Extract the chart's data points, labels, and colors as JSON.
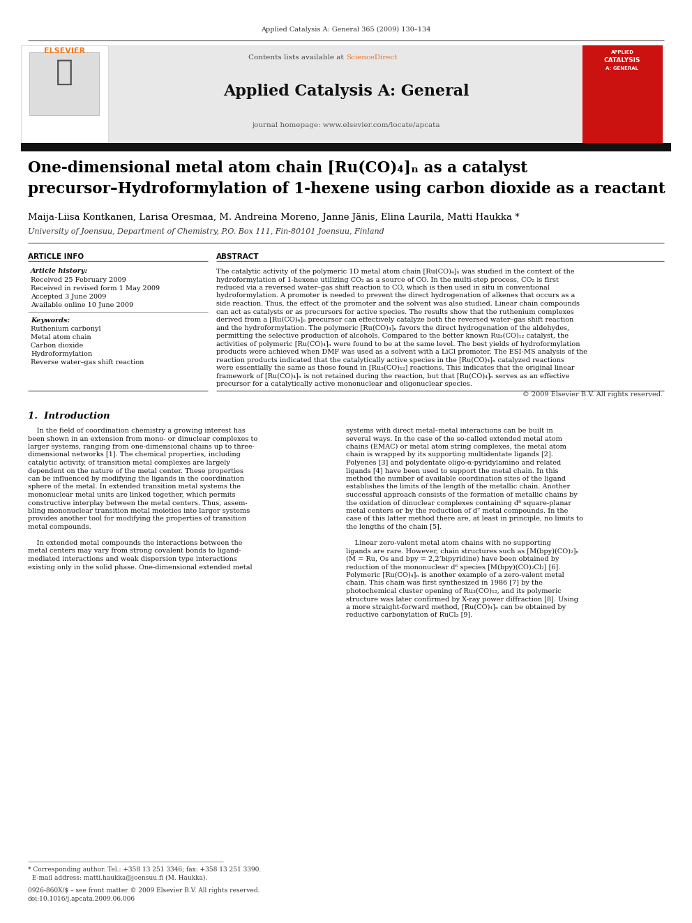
{
  "page_width": 9.92,
  "page_height": 13.23,
  "dpi": 100,
  "bg_color": "#ffffff",
  "header_journal": "Applied Catalysis A: General 365 (2009) 130–134",
  "science_direct_color": "#e87020",
  "journal_name": "Applied Catalysis A: General",
  "journal_homepage": "journal homepage: www.elsevier.com/locate/apcata",
  "contents_text": "Contents lists available at ",
  "science_direct_text": "ScienceDirect",
  "article_title_line1": "One-dimensional metal atom chain [Ru(CO)₄]ₙ as a catalyst",
  "article_title_line2": "precursor–Hydroformylation of 1-hexene using carbon dioxide as a reactant",
  "authors": "Maija-Liisa Kontkanen, Larisa Oresmaa, M. Andreina Moreno, Janne Jänis, Elina Laurila, Matti Haukka *",
  "affiliation": "University of Joensuu, Department of Chemistry, P.O. Box 111, Fin-80101 Joensuu, Finland",
  "article_info_title": "ARTICLE INFO",
  "abstract_title": "ABSTRACT",
  "article_history_label": "Article history:",
  "received1": "Received 25 February 2009",
  "received2": "Received in revised form 1 May 2009",
  "accepted": "Accepted 3 June 2009",
  "available": "Available online 10 June 2009",
  "keywords_label": "Keywords:",
  "keyword1": "Ruthenium carbonyl",
  "keyword2": "Metal atom chain",
  "keyword3": "Carbon dioxide",
  "keyword4": "Hydroformylation",
  "keyword5": "Reverse water–gas shift reaction",
  "copyright": "© 2009 Elsevier B.V. All rights reserved.",
  "intro_title": "1.  Introduction",
  "abstract_lines": [
    "The catalytic activity of the polymeric 1D metal atom chain [Ru(CO)₄]ₙ was studied in the context of the",
    "hydroformylation of 1-hexene utilizing CO₂ as a source of CO. In the multi-step process, CO₂ is first",
    "reduced via a reversed water–gas shift reaction to CO, which is then used in situ in conventional",
    "hydroformylation. A promoter is needed to prevent the direct hydrogenation of alkenes that occurs as a",
    "side reaction. Thus, the effect of the promoter and the solvent was also studied. Linear chain compounds",
    "can act as catalysts or as precursors for active species. The results show that the ruthenium complexes",
    "derived from a [Ru(CO)₄]ₙ precursor can effectively catalyze both the reversed water–gas shift reaction",
    "and the hydroformylation. The polymeric [Ru(CO)₄]ₙ favors the direct hydrogenation of the aldehydes,",
    "permitting the selective production of alcohols. Compared to the better known Ru₃(CO)₁₂ catalyst, the",
    "activities of polymeric [Ru(CO)₄]ₙ were found to be at the same level. The best yields of hydroformylation",
    "products were achieved when DMF was used as a solvent with a LiCl promoter. The ESI-MS analysis of the",
    "reaction products indicated that the catalytically active species in the [Ru(CO)₄]ₙ catalyzed reactions",
    "were essentially the same as those found in [Ru₃(CO)₁₂] reactions. This indicates that the original linear",
    "framework of [Ru(CO)₄]ₙ is not retained during the reaction, but that [Ru(CO)₄]ₙ serves as an effective",
    "precursor for a catalytically active mononuclear and oligonuclear species."
  ],
  "intro_col1_lines": [
    "    In the field of coordination chemistry a growing interest has",
    "been shown in an extension from mono- or dinuclear complexes to",
    "larger systems, ranging from one-dimensional chains up to three-",
    "dimensional networks [1]. The chemical properties, including",
    "catalytic activity, of transition metal complexes are largely",
    "dependent on the nature of the metal center. These properties",
    "can be influenced by modifying the ligands in the coordination",
    "sphere of the metal. In extended transition metal systems the",
    "mononuclear metal units are linked together, which permits",
    "constructive interplay between the metal centers. Thus, assem-",
    "bling mononuclear transition metal moieties into larger systems",
    "provides another tool for modifying the properties of transition",
    "metal compounds.",
    "",
    "    In extended metal compounds the interactions between the",
    "metal centers may vary from strong covalent bonds to ligand-",
    "mediated interactions and weak dispersion type interactions",
    "existing only in the solid phase. One-dimensional extended metal"
  ],
  "intro_col2_lines": [
    "systems with direct metal–metal interactions can be built in",
    "several ways. In the case of the so-called extended metal atom",
    "chains (EMAC) or metal atom string complexes, the metal atom",
    "chain is wrapped by its supporting multidentate ligands [2].",
    "Polyenes [3] and polydentate oligo-α-pyridylamino and related",
    "ligands [4] have been used to support the metal chain. In this",
    "method the number of available coordination sites of the ligand",
    "establishes the limits of the length of the metallic chain. Another",
    "successful approach consists of the formation of metallic chains by",
    "the oxidation of dinuclear complexes containing d⁸ square-planar",
    "metal centers or by the reduction of d⁷ metal compounds. In the",
    "case of this latter method there are, at least in principle, no limits to",
    "the lengths of the chain [5].",
    "",
    "    Linear zero-valent metal atom chains with no supporting",
    "ligands are rare. However, chain structures such as [M(bpy)(CO)₂]ₙ",
    "(M = Ru, Os and bpy = 2,2’bipyridine) have been obtained by",
    "reduction of the mononuclear d⁶ species [M(bpy)(CO)₂Cl₂] [6].",
    "Polymeric [Ru(CO)₄]ₙ is another example of a zero-valent metal",
    "chain. This chain was first synthesized in 1986 [7] by the",
    "photochemical cluster opening of Ru₃(CO)₁₂, and its polymeric",
    "structure was later confirmed by X-ray power diffraction [8]. Using",
    "a more straight-forward method, [Ru(CO)₄]ₙ can be obtained by",
    "reductive carbonylation of RuCl₃ [9]."
  ],
  "footnote1": "* Corresponding author. Tel.: +358 13 251 3346; fax: +358 13 251 3390.",
  "footnote2": "  E-mail address: matti.haukka@joensuu.fi (M. Haukka).",
  "issn1": "0926-860X/$ – see front matter © 2009 Elsevier B.V. All rights reserved.",
  "issn2": "doi:10.1016/j.apcata.2009.06.006"
}
